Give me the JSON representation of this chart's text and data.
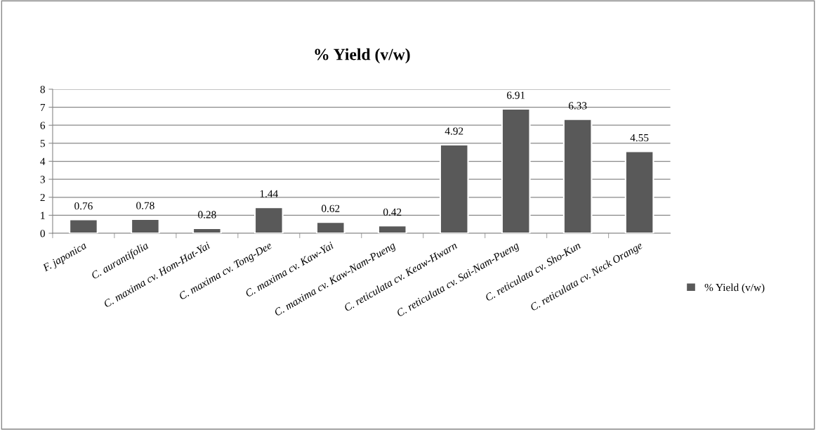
{
  "chart_data": {
    "type": "bar",
    "title": "% Yield (v/w)",
    "categories": [
      "F. japonica",
      "C. aurantifolia",
      "C. maxima cv. Hom-Hat-Yai",
      "C. maxima cv. Tong-Dee",
      "C. maxima cv. Kaw-Yai",
      "C. maxima cv. Kaw-Nam-Pueng",
      "C. reticulata cv. Keaw-Hwarn",
      "C. reticulata cv. Sai-Nam-Pueng",
      "C. reticulata cv. Sho-Kun",
      "C. reticulata cv. Neck Orange"
    ],
    "series": [
      {
        "name": "% Yield (v/w)",
        "color": "#595959",
        "values": [
          0.76,
          0.78,
          0.28,
          1.44,
          0.62,
          0.42,
          4.92,
          6.91,
          6.33,
          4.55
        ]
      }
    ],
    "ylim": [
      0,
      8
    ],
    "yticks": [
      0,
      1,
      2,
      3,
      4,
      5,
      6,
      7,
      8
    ],
    "grid": "y",
    "legend": "right",
    "data_labels": true
  }
}
